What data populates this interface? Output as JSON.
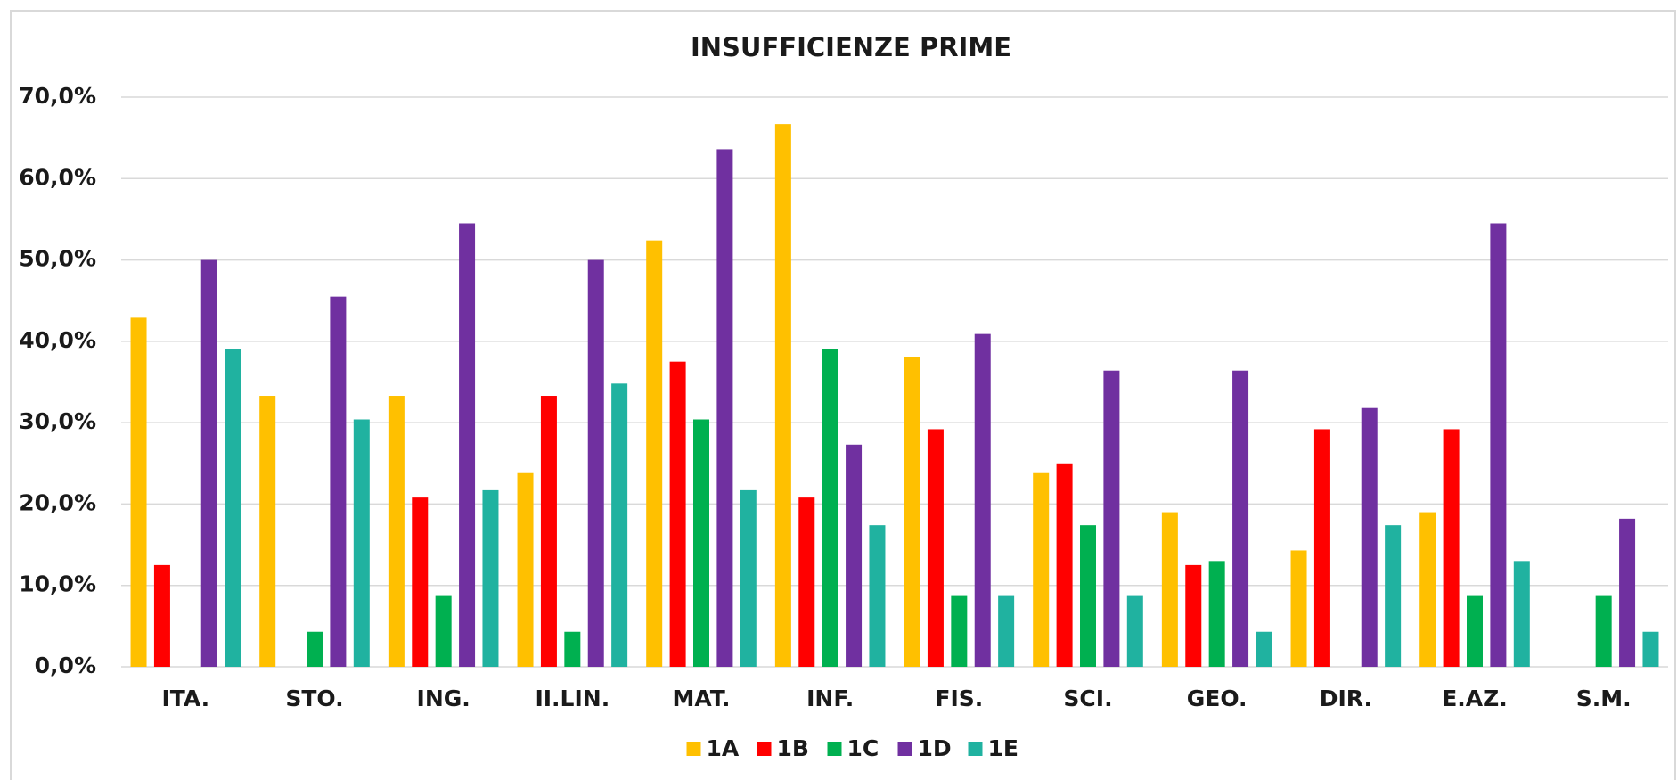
{
  "chart_data": {
    "type": "bar",
    "title": "INSUFFICIENZE PRIME",
    "categories": [
      "ITA.",
      "STO.",
      "ING.",
      "II.LIN.",
      "MAT.",
      "INF.",
      "FIS.",
      "SCI.",
      "GEO.",
      "DIR.",
      "E.AZ.",
      "S.M."
    ],
    "series": [
      {
        "name": "1A",
        "color": "#ffc000",
        "values": [
          42.9,
          33.3,
          33.3,
          23.8,
          52.4,
          66.7,
          38.1,
          23.8,
          19.0,
          14.3,
          19.0,
          0
        ]
      },
      {
        "name": "1B",
        "color": "#ff0000",
        "values": [
          12.5,
          0,
          20.8,
          33.3,
          37.5,
          20.8,
          29.2,
          25.0,
          12.5,
          29.2,
          29.2,
          0
        ]
      },
      {
        "name": "1C",
        "color": "#00b050",
        "values": [
          0,
          4.3,
          8.7,
          4.3,
          30.4,
          39.1,
          8.7,
          17.4,
          13.0,
          0,
          8.7,
          8.7
        ]
      },
      {
        "name": "1D",
        "color": "#7030a0",
        "values": [
          50.0,
          45.5,
          54.5,
          50.0,
          63.6,
          27.3,
          40.9,
          36.4,
          36.4,
          31.8,
          54.5,
          18.2
        ]
      },
      {
        "name": "1E",
        "color": "#20b2a0",
        "values": [
          39.1,
          30.4,
          21.7,
          34.8,
          21.7,
          17.4,
          8.7,
          8.7,
          4.3,
          17.4,
          13.0,
          4.3
        ]
      }
    ],
    "ylim": [
      0,
      70
    ],
    "yticks": [
      {
        "value": 0,
        "label": "0,0%"
      },
      {
        "value": 10,
        "label": "10,0%"
      },
      {
        "value": 20,
        "label": "20,0%"
      },
      {
        "value": 30,
        "label": "30,0%"
      },
      {
        "value": 40,
        "label": "40,0%"
      },
      {
        "value": 50,
        "label": "50,0%"
      },
      {
        "value": 60,
        "label": "60,0%"
      },
      {
        "value": 70,
        "label": "70,0%"
      }
    ],
    "grid": true,
    "legend": "bottom"
  }
}
